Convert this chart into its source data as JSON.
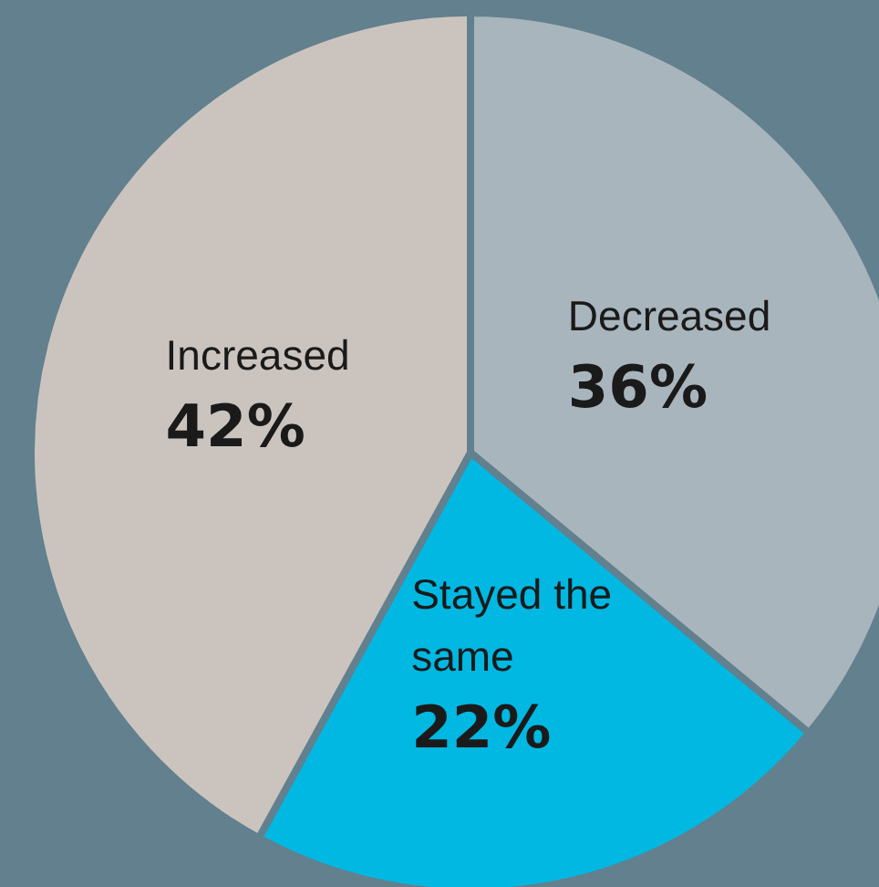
{
  "chart_data": {
    "type": "pie",
    "categories": [
      "Decreased",
      "Stayed the same",
      "Increased"
    ],
    "values": [
      36,
      22,
      42
    ],
    "colors": [
      "#a9b5bd",
      "#00b8e2",
      "#cbc4be"
    ],
    "value_labels": [
      "36%",
      "22%",
      "42%"
    ],
    "legend": false
  }
}
